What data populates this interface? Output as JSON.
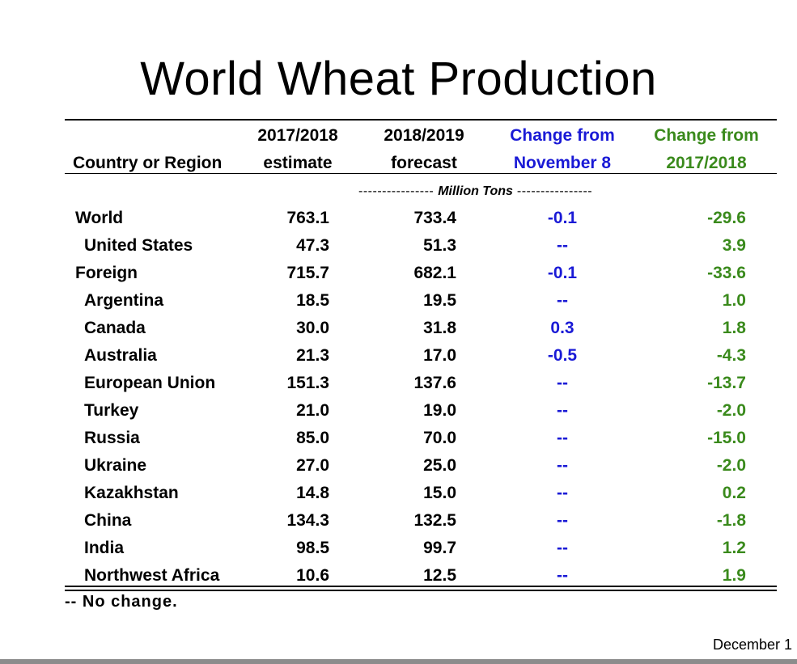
{
  "title": "World Wheat Production",
  "header": {
    "country": "Country or Region",
    "col1": [
      "2017/2018",
      "estimate"
    ],
    "col2": [
      "2018/2019",
      "forecast"
    ],
    "col3": [
      "Change from",
      "November 8"
    ],
    "col4": [
      "Change from",
      "2017/2018"
    ]
  },
  "units": {
    "dash_left": "---------------- ",
    "label": "Million Tons",
    "dash_right": " ----------------"
  },
  "rows": [
    {
      "name": "World",
      "v1": "763.1",
      "v2": "733.4",
      "v3": "-0.1",
      "v4": "-29.6"
    },
    {
      "name": "United States",
      "v1": "47.3",
      "v2": "51.3",
      "v3": "--",
      "v4": "3.9"
    },
    {
      "name": "Foreign",
      "v1": "715.7",
      "v2": "682.1",
      "v3": "-0.1",
      "v4": "-33.6"
    },
    {
      "name": "Argentina",
      "v1": "18.5",
      "v2": "19.5",
      "v3": "--",
      "v4": "1.0"
    },
    {
      "name": "Canada",
      "v1": "30.0",
      "v2": "31.8",
      "v3": "0.3",
      "v4": "1.8"
    },
    {
      "name": "Australia",
      "v1": "21.3",
      "v2": "17.0",
      "v3": "-0.5",
      "v4": "-4.3"
    },
    {
      "name": "European Union",
      "v1": "151.3",
      "v2": "137.6",
      "v3": "--",
      "v4": "-13.7"
    },
    {
      "name": "Turkey",
      "v1": "21.0",
      "v2": "19.0",
      "v3": "--",
      "v4": "-2.0"
    },
    {
      "name": "Russia",
      "v1": "85.0",
      "v2": "70.0",
      "v3": "--",
      "v4": "-15.0"
    },
    {
      "name": "Ukraine",
      "v1": "27.0",
      "v2": "25.0",
      "v3": "--",
      "v4": "-2.0"
    },
    {
      "name": "Kazakhstan",
      "v1": "14.8",
      "v2": "15.0",
      "v3": "--",
      "v4": "0.2"
    },
    {
      "name": "China",
      "v1": "134.3",
      "v2": "132.5",
      "v3": "--",
      "v4": "-1.8"
    },
    {
      "name": "India",
      "v1": "98.5",
      "v2": "99.7",
      "v3": "--",
      "v4": "1.2"
    },
    {
      "name": "Northwest Africa",
      "v1": "10.6",
      "v2": "12.5",
      "v3": "--",
      "v4": "1.9"
    }
  ],
  "footnote": "-- No change.",
  "date": "December 1",
  "colors": {
    "change_from_nov": "#1a1ad6",
    "change_from_prior": "#3a8a1c"
  }
}
